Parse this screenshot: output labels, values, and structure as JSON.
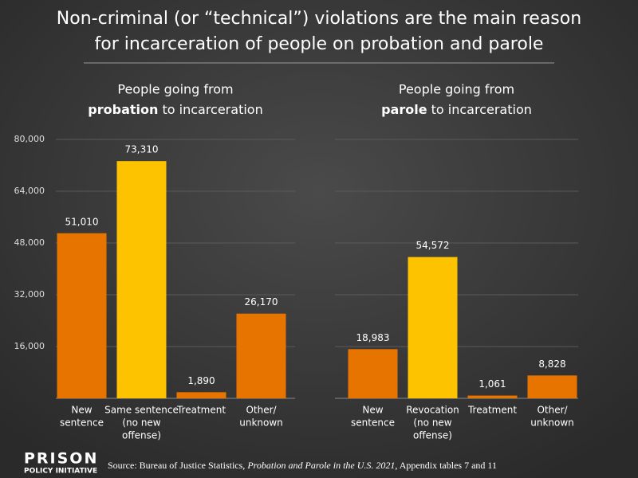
{
  "chart_data": [
    {
      "type": "bar",
      "title": [
        "Non-criminal (or “technical”) violations are the main reason",
        "for incarceration of people on probation and parole"
      ],
      "subtitle": [
        "People going from",
        "probation",
        " to incarceration"
      ],
      "categories": [
        [
          "New",
          "sentence"
        ],
        [
          "Same sentence",
          "(no new",
          "offense)"
        ],
        [
          "Treatment"
        ],
        [
          "Other/",
          "unknown"
        ]
      ],
      "values": [
        51010,
        73310,
        1890,
        26170
      ],
      "value_labels": [
        "51,010",
        "73,310",
        "1,890",
        "26,170"
      ],
      "colors": [
        "#e87400",
        "#fdc300",
        "#e87400",
        "#e87400"
      ],
      "ylim": [
        0,
        80000
      ],
      "yticks": [
        0,
        {
          "value": 16000,
          "label": "16,000"
        },
        {
          "value": 32000,
          "label": "32,000"
        },
        {
          "value": 48000,
          "label": "48,000"
        },
        {
          "value": 64000,
          "label": "64,000"
        },
        {
          "value": 80000,
          "label": "80,000"
        }
      ],
      "grid": true,
      "tick_labels": true
    },
    {
      "type": "bar",
      "subtitle": [
        "People going from",
        "parole",
        " to incarceration"
      ],
      "categories": [
        [
          "New",
          "sentence"
        ],
        [
          "Revocation",
          "(no new",
          "offense)"
        ],
        [
          "Treatment"
        ],
        [
          "Other/",
          "unknown"
        ]
      ],
      "values": [
        18983,
        54572,
        1061,
        8828
      ],
      "value_labels": [
        "18,983",
        "54,572",
        "1,061",
        "8,828"
      ],
      "colors": [
        "#e87400",
        "#fdc300",
        "#e87400",
        "#e87400"
      ],
      "ylim": [
        0,
        100000
      ],
      "yticks": [
        0,
        20000,
        40000,
        60000,
        80000,
        100000
      ],
      "grid": true,
      "tick_labels": false
    }
  ],
  "source": [
    "Source: Bureau of Justice Statistics, ",
    "Probation and Parole in the U.S. 2021",
    ", Appendix tables 7 and 11"
  ],
  "logo": [
    "PRISON",
    "POLICY INITIATIVE"
  ]
}
